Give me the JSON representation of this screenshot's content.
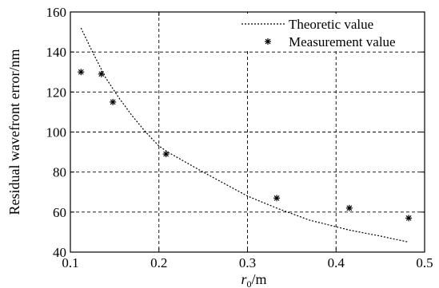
{
  "chart_data": {
    "type": "line",
    "xlabel_main": "r",
    "xlabel_sub": "0",
    "xlabel_unit": "/m",
    "ylabel": "Residual wavefront error/nm",
    "xlim": [
      0.1,
      0.5
    ],
    "ylim": [
      40,
      160
    ],
    "xticks": [
      "0.1",
      "0.2",
      "0.3",
      "0.4",
      "0.5"
    ],
    "yticks": [
      "40",
      "60",
      "80",
      "100",
      "120",
      "140",
      "160"
    ],
    "grid": true,
    "legend_position": "top-right",
    "series": [
      {
        "name": "Theoretic value",
        "style": "dotted-line",
        "x": [
          0.112,
          0.125,
          0.14,
          0.155,
          0.17,
          0.185,
          0.2,
          0.21,
          0.25,
          0.3,
          0.333,
          0.37,
          0.415,
          0.45,
          0.482
        ],
        "y": [
          152,
          140,
          127,
          117,
          108,
          100,
          93,
          90,
          80,
          68,
          62,
          56,
          51,
          48,
          45
        ]
      },
      {
        "name": "Measurement value",
        "style": "star-marker",
        "x": [
          0.112,
          0.135,
          0.148,
          0.208,
          0.333,
          0.415,
          0.482
        ],
        "y": [
          130,
          129,
          115,
          89,
          67,
          62,
          57
        ]
      }
    ]
  }
}
